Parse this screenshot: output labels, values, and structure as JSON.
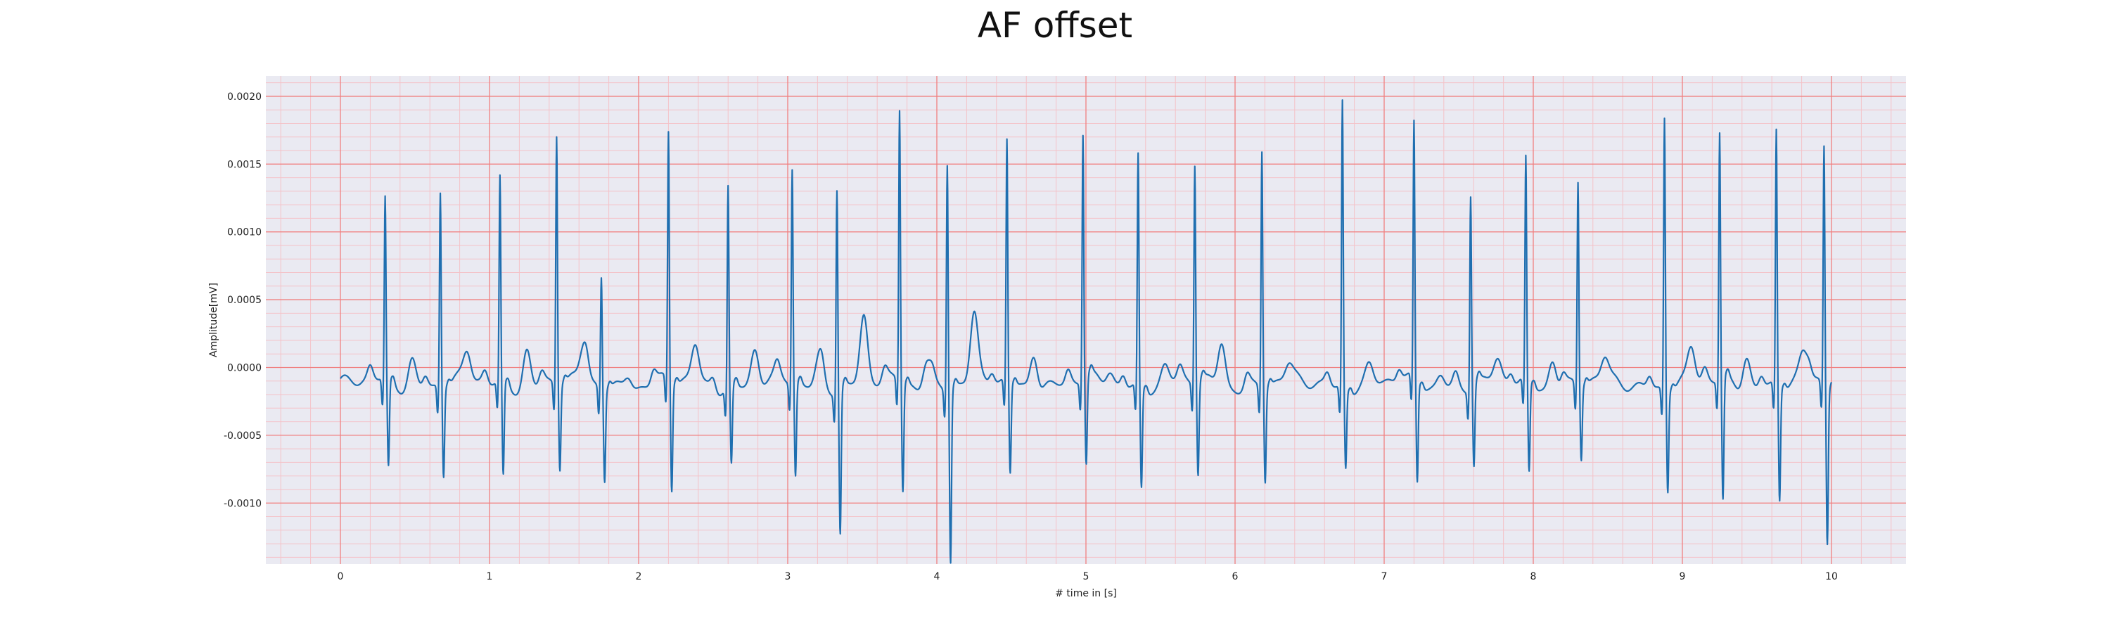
{
  "chart_data": {
    "type": "line",
    "title": "AF offset",
    "xlabel": "# time in [s]",
    "ylabel": "Amplitude[mV]",
    "xlim": [
      -0.5,
      10.5
    ],
    "ylim": [
      -0.00145,
      0.00215
    ],
    "x_ticks": [
      0,
      1,
      2,
      3,
      4,
      5,
      6,
      7,
      8,
      9,
      10
    ],
    "x_tick_labels": [
      "0",
      "1",
      "2",
      "3",
      "4",
      "5",
      "6",
      "7",
      "8",
      "9",
      "10"
    ],
    "y_ticks": [
      -0.001,
      -0.0005,
      0.0,
      0.0005,
      0.001,
      0.0015,
      0.002
    ],
    "y_tick_labels": [
      "-0.0010",
      "-0.0005",
      "0.0000",
      "0.0005",
      "0.0010",
      "0.0015",
      "0.0020"
    ],
    "grid": true,
    "grid_color": "#f08080",
    "minor_grid_color": "#f4c2c8",
    "plot_background": "#eaeaf2",
    "line_color": "#1f6fb0",
    "beats": [
      {
        "t": 0.3,
        "r": 0.00122,
        "s": -0.00065,
        "tw": 0.0002
      },
      {
        "t": 0.67,
        "r": 0.00132,
        "s": -0.00065,
        "tw": 0.0002
      },
      {
        "t": 1.07,
        "r": 0.00139,
        "s": -0.0007,
        "tw": 0.00028
      },
      {
        "t": 1.45,
        "r": 0.00172,
        "s": -0.00062,
        "tw": 0.00022
      },
      {
        "t": 1.75,
        "r": 0.00071,
        "s": -0.00067,
        "tw": 0.0001
      },
      {
        "t": 2.2,
        "r": 0.00171,
        "s": -0.0008,
        "tw": 0.00027
      },
      {
        "t": 2.6,
        "r": 0.00136,
        "s": -0.00059,
        "tw": 0.00025
      },
      {
        "t": 3.03,
        "r": 0.00146,
        "s": -0.00069,
        "tw": 0.00018
      },
      {
        "t": 3.33,
        "r": 0.00138,
        "s": -0.00107,
        "tw": 0.00046
      },
      {
        "t": 3.75,
        "r": 0.00188,
        "s": -0.0008,
        "tw": 0.0002
      },
      {
        "t": 4.07,
        "r": 0.00155,
        "s": -0.00128,
        "tw": 0.00047
      },
      {
        "t": 4.47,
        "r": 0.00166,
        "s": -0.00067,
        "tw": 0.00028
      },
      {
        "t": 4.98,
        "r": 0.0017,
        "s": -0.00064,
        "tw": 0.0001
      },
      {
        "t": 5.35,
        "r": 0.00158,
        "s": -0.00075,
        "tw": 0.00012
      },
      {
        "t": 5.73,
        "r": 0.0015,
        "s": -0.00068,
        "tw": 0.00032
      },
      {
        "t": 6.18,
        "r": 0.00163,
        "s": -0.00069,
        "tw": 0.0001
      },
      {
        "t": 6.72,
        "r": 0.002,
        "s": -0.00058,
        "tw": 0.00012
      },
      {
        "t": 7.2,
        "r": 0.00177,
        "s": -0.00074,
        "tw": 0.0001
      },
      {
        "t": 7.58,
        "r": 0.00131,
        "s": -0.0006,
        "tw": 0.00013
      },
      {
        "t": 7.95,
        "r": 0.00152,
        "s": -0.00067,
        "tw": 0.00022
      },
      {
        "t": 8.3,
        "r": 0.00138,
        "s": -0.00054,
        "tw": 0.00015
      },
      {
        "t": 8.88,
        "r": 0.00189,
        "s": -0.00074,
        "tw": 0.00024
      },
      {
        "t": 9.25,
        "r": 0.00171,
        "s": -0.0009,
        "tw": 0.00024
      },
      {
        "t": 9.63,
        "r": 0.00176,
        "s": -0.00084,
        "tw": 0.00018
      },
      {
        "t": 9.95,
        "r": 0.00164,
        "s": -0.00116,
        "tw": 0.0002
      }
    ]
  }
}
